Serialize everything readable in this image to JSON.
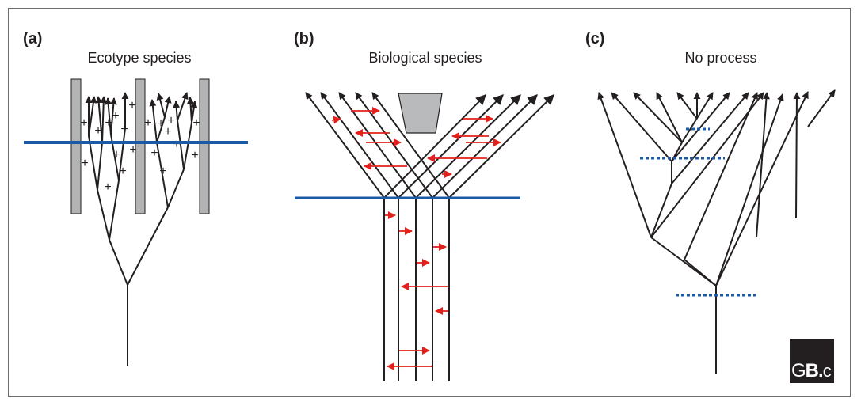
{
  "panels": [
    {
      "label": "(a)",
      "title": "Ecotype species"
    },
    {
      "label": "(b)",
      "title": "Biological species"
    },
    {
      "label": "(c)",
      "title": "No process"
    }
  ],
  "panel_a": {
    "plus_symbol": "+"
  },
  "logo": {
    "text_g": "G",
    "text_b": "B",
    "text_dot": ".",
    "text_c": "c"
  },
  "colors": {
    "line": "#231f20",
    "barrier": "#b2b3b5",
    "blue_line": "#1b5aa5",
    "red_arrow": "#e3211c",
    "funnel": "#b9babc"
  }
}
